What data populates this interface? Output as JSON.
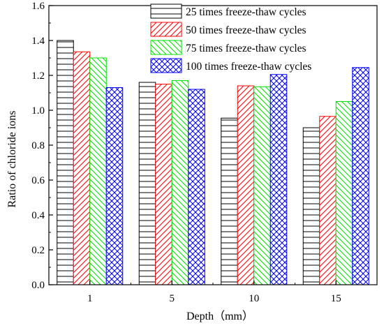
{
  "chart_data": {
    "type": "bar",
    "categories": [
      "1",
      "5",
      "10",
      "15"
    ],
    "series": [
      {
        "name": "25 times freeze-thaw cycles",
        "values": [
          1.4,
          1.16,
          0.955,
          0.9
        ],
        "color": "#000000",
        "pattern": "horizontal-lines"
      },
      {
        "name": "50 times freeze-thaw cycles",
        "values": [
          1.335,
          1.15,
          1.14,
          0.965
        ],
        "color": "#ff0000",
        "pattern": "diagonal-lines-up"
      },
      {
        "name": "75 times freeze-thaw cycles",
        "values": [
          1.3,
          1.17,
          1.135,
          1.05
        ],
        "color": "#00e000",
        "pattern": "diagonal-lines-down"
      },
      {
        "name": "100 times freeze-thaw cycles",
        "values": [
          1.13,
          1.12,
          1.205,
          1.245
        ],
        "color": "#0000ff",
        "pattern": "crosshatch"
      }
    ],
    "xlabel": "Depth（mm）",
    "ylabel": "Ratio of chloride ions",
    "ylim": [
      0,
      1.6
    ],
    "yticks": [
      "0.0",
      "0.2",
      "0.4",
      "0.6",
      "0.8",
      "1.0",
      "1.2",
      "1.4",
      "1.6"
    ],
    "grid": false,
    "legend_position": "top-right"
  }
}
